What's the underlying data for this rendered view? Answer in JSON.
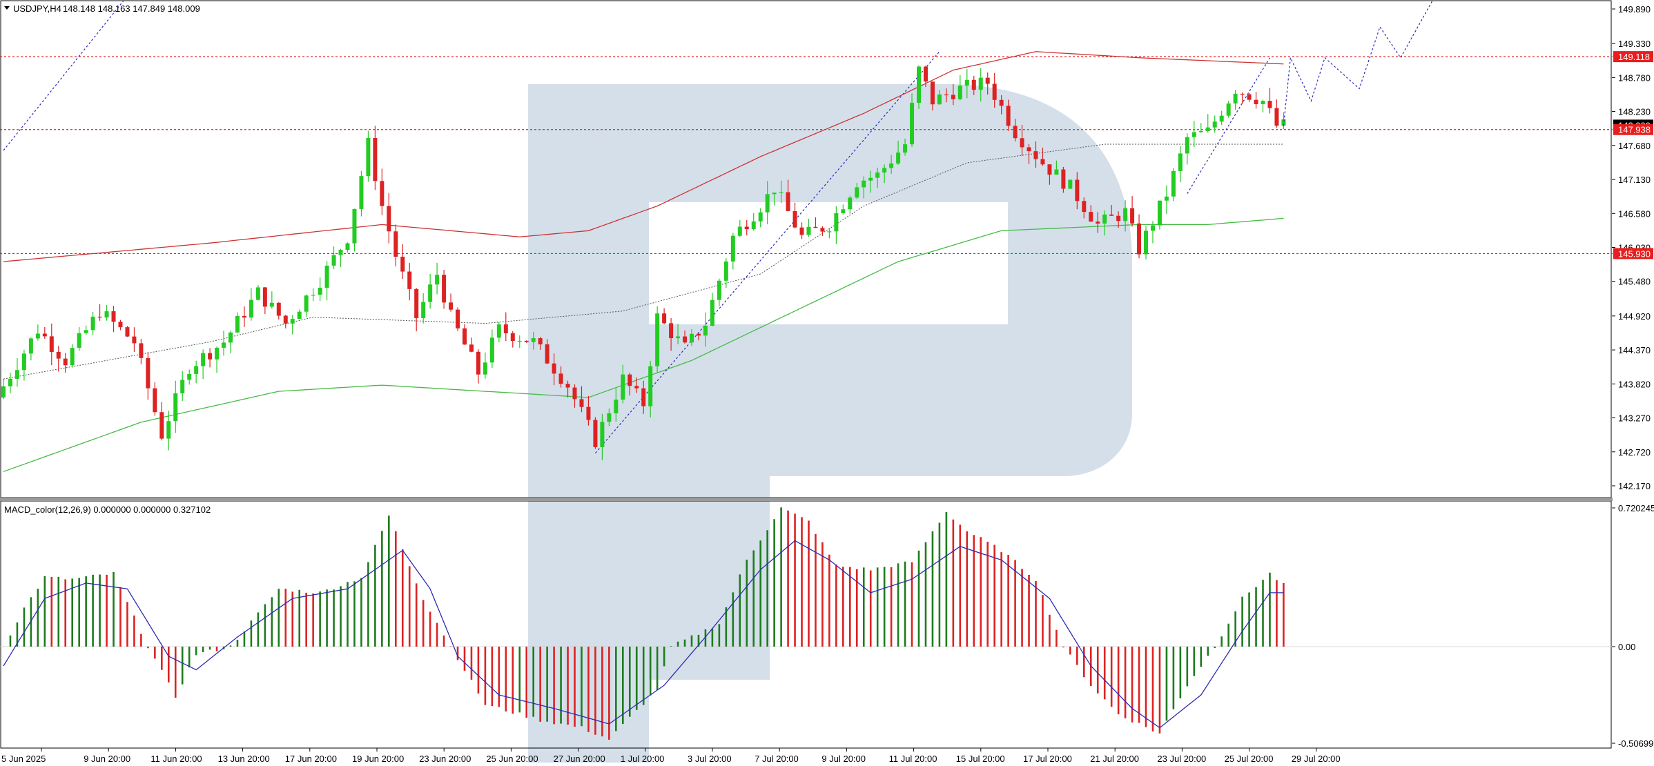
{
  "chart_data": [
    {
      "type": "candlestick",
      "symbol_label": "USDJPY,H4",
      "ohlc_label": "148.148 148.163 147.849 148.009",
      "yticks": [
        "149.890",
        "149.330",
        "148.780",
        "148.230",
        "147.680",
        "147.130",
        "146.580",
        "146.030",
        "145.480",
        "144.920",
        "144.370",
        "143.820",
        "143.270",
        "142.720",
        "142.170"
      ],
      "ylim": [
        142.05,
        149.95
      ],
      "x_labels": [
        "5 Jun 2025",
        "9 Jun 20:00",
        "11 Jun 20:00",
        "13 Jun 20:00",
        "17 Jun 20:00",
        "19 Jun 20:00",
        "23 Jun 20:00",
        "25 Jun 20:00",
        "27 Jun 20:00",
        "1 Jul 20:00",
        "3 Jul 20:00",
        "7 Jul 20:00",
        "9 Jul 20:00",
        "11 Jul 20:00",
        "15 Jul 20:00",
        "17 Jul 20:00",
        "21 Jul 20:00",
        "23 Jul 20:00",
        "25 Jul 20:00",
        "29 Jul 20:00"
      ],
      "price_levels": [
        {
          "value": 149.118,
          "label": "149.118",
          "color": "#e81e1e"
        },
        {
          "value": 147.938,
          "label": "147.938",
          "color": "#e81e1e"
        },
        {
          "value": 145.93,
          "label": "145.930",
          "color": "#e81e1e"
        }
      ],
      "current_price": {
        "value": 148.009,
        "label": "148.009",
        "color": "#000000"
      },
      "up_color": "#22cc22",
      "down_color": "#dd2222",
      "ma_long_color": "#cc3333",
      "ma_mid_color": "#44bb44",
      "key_points": [
        [
          0,
          143.6
        ],
        [
          6,
          144.7
        ],
        [
          10,
          144.2
        ],
        [
          15,
          145.0
        ],
        [
          20,
          144.5
        ],
        [
          24,
          143.0
        ],
        [
          28,
          144.1
        ],
        [
          33,
          144.5
        ],
        [
          38,
          145.3
        ],
        [
          42,
          144.8
        ],
        [
          47,
          145.5
        ],
        [
          51,
          146.2
        ],
        [
          54,
          147.7
        ],
        [
          56,
          146.7
        ],
        [
          58,
          145.9
        ],
        [
          61,
          144.9
        ],
        [
          64,
          145.6
        ],
        [
          66,
          144.9
        ],
        [
          70,
          144.0
        ],
        [
          73,
          144.7
        ],
        [
          78,
          144.5
        ],
        [
          83,
          143.8
        ],
        [
          87,
          142.9
        ],
        [
          91,
          143.9
        ],
        [
          94,
          143.5
        ],
        [
          96,
          144.9
        ],
        [
          100,
          144.4
        ],
        [
          103,
          144.8
        ],
        [
          107,
          146.2
        ],
        [
          111,
          146.7
        ],
        [
          113,
          147.0
        ],
        [
          117,
          146.2
        ],
        [
          121,
          146.4
        ],
        [
          125,
          147.1
        ],
        [
          128,
          147.2
        ],
        [
          132,
          147.7
        ],
        [
          134,
          148.9
        ],
        [
          136,
          148.4
        ],
        [
          140,
          148.6
        ],
        [
          144,
          148.7
        ],
        [
          148,
          147.9
        ],
        [
          152,
          147.4
        ],
        [
          156,
          147.0
        ],
        [
          160,
          146.4
        ],
        [
          164,
          146.6
        ],
        [
          166,
          146.0
        ],
        [
          170,
          146.9
        ],
        [
          173,
          147.8
        ],
        [
          176,
          147.9
        ],
        [
          180,
          148.6
        ],
        [
          184,
          148.4
        ],
        [
          186,
          148.0
        ]
      ],
      "ma_long_points": [
        [
          0,
          145.8
        ],
        [
          30,
          146.1
        ],
        [
          55,
          146.4
        ],
        [
          75,
          146.2
        ],
        [
          85,
          146.3
        ],
        [
          95,
          146.7
        ],
        [
          110,
          147.5
        ],
        [
          125,
          148.2
        ],
        [
          138,
          148.9
        ],
        [
          150,
          149.2
        ],
        [
          165,
          149.1
        ],
        [
          186,
          149.0
        ]
      ],
      "ma_mid_points": [
        [
          0,
          142.4
        ],
        [
          20,
          143.2
        ],
        [
          40,
          143.7
        ],
        [
          55,
          143.8
        ],
        [
          85,
          143.6
        ],
        [
          100,
          144.2
        ],
        [
          115,
          145.0
        ],
        [
          130,
          145.8
        ],
        [
          145,
          146.3
        ],
        [
          165,
          146.4
        ],
        [
          175,
          146.4
        ],
        [
          186,
          146.5
        ]
      ],
      "ma_dotted_points": [
        [
          0,
          143.9
        ],
        [
          30,
          144.5
        ],
        [
          45,
          144.9
        ],
        [
          70,
          144.8
        ],
        [
          90,
          145.0
        ],
        [
          110,
          145.6
        ],
        [
          125,
          146.7
        ],
        [
          140,
          147.4
        ],
        [
          160,
          147.7
        ],
        [
          186,
          147.7
        ]
      ],
      "projection_points": [
        [
          186,
          148.0
        ],
        [
          187,
          149.1
        ],
        [
          190,
          148.4
        ],
        [
          192,
          149.1
        ],
        [
          197,
          148.6
        ],
        [
          200,
          149.6
        ],
        [
          203,
          149.1
        ],
        [
          208,
          150.1
        ]
      ],
      "wave_lines": [
        [
          [
            0,
            147.6
          ],
          [
            18,
            150.1
          ]
        ],
        [
          [
            86,
            142.7
          ],
          [
            136,
            149.2
          ]
        ],
        [
          [
            172,
            146.9
          ],
          [
            184,
            149.1
          ]
        ]
      ]
    },
    {
      "type": "bar",
      "indicator_label": "MACD_color(12,26,9) 0.000000 0.000000 0.327102",
      "yticks": [
        "0.720245",
        "0.00",
        "-0.506992"
      ],
      "ylim": [
        -0.506992,
        0.720245
      ],
      "pos_up_color": "#1e7b1e",
      "pos_down_color": "#dd2222",
      "signal_color": "#2b2bb0",
      "key_points": [
        [
          0,
          0.0
        ],
        [
          3,
          0.2
        ],
        [
          6,
          0.36
        ],
        [
          10,
          0.35
        ],
        [
          16,
          0.38
        ],
        [
          21,
          0.0
        ],
        [
          25,
          -0.26
        ],
        [
          28,
          -0.04
        ],
        [
          33,
          0.0
        ],
        [
          40,
          0.3
        ],
        [
          46,
          0.28
        ],
        [
          52,
          0.36
        ],
        [
          56,
          0.68
        ],
        [
          61,
          0.25
        ],
        [
          65,
          0.0
        ],
        [
          70,
          -0.3
        ],
        [
          78,
          -0.38
        ],
        [
          84,
          -0.42
        ],
        [
          88,
          -0.48
        ],
        [
          95,
          -0.22
        ],
        [
          97,
          0.0
        ],
        [
          100,
          0.05
        ],
        [
          104,
          0.12
        ],
        [
          108,
          0.45
        ],
        [
          113,
          0.72
        ],
        [
          117,
          0.65
        ],
        [
          121,
          0.42
        ],
        [
          126,
          0.4
        ],
        [
          132,
          0.44
        ],
        [
          137,
          0.7
        ],
        [
          140,
          0.6
        ],
        [
          145,
          0.5
        ],
        [
          150,
          0.35
        ],
        [
          154,
          0.0
        ],
        [
          158,
          -0.2
        ],
        [
          162,
          -0.35
        ],
        [
          168,
          -0.45
        ],
        [
          172,
          -0.2
        ],
        [
          176,
          0.0
        ],
        [
          180,
          0.25
        ],
        [
          184,
          0.38
        ],
        [
          186,
          0.32
        ]
      ],
      "signal_points": [
        [
          0,
          -0.1
        ],
        [
          6,
          0.25
        ],
        [
          12,
          0.33
        ],
        [
          18,
          0.3
        ],
        [
          24,
          -0.05
        ],
        [
          28,
          -0.12
        ],
        [
          34,
          0.05
        ],
        [
          42,
          0.25
        ],
        [
          50,
          0.3
        ],
        [
          58,
          0.5
        ],
        [
          62,
          0.3
        ],
        [
          66,
          -0.05
        ],
        [
          72,
          -0.25
        ],
        [
          80,
          -0.32
        ],
        [
          88,
          -0.4
        ],
        [
          96,
          -0.2
        ],
        [
          102,
          0.05
        ],
        [
          110,
          0.4
        ],
        [
          115,
          0.55
        ],
        [
          120,
          0.45
        ],
        [
          126,
          0.28
        ],
        [
          132,
          0.35
        ],
        [
          139,
          0.52
        ],
        [
          145,
          0.45
        ],
        [
          152,
          0.25
        ],
        [
          158,
          -0.1
        ],
        [
          164,
          -0.32
        ],
        [
          168,
          -0.42
        ],
        [
          174,
          -0.25
        ],
        [
          180,
          0.08
        ],
        [
          184,
          0.28
        ],
        [
          186,
          0.28
        ]
      ]
    }
  ],
  "watermark": "logo-watermark"
}
